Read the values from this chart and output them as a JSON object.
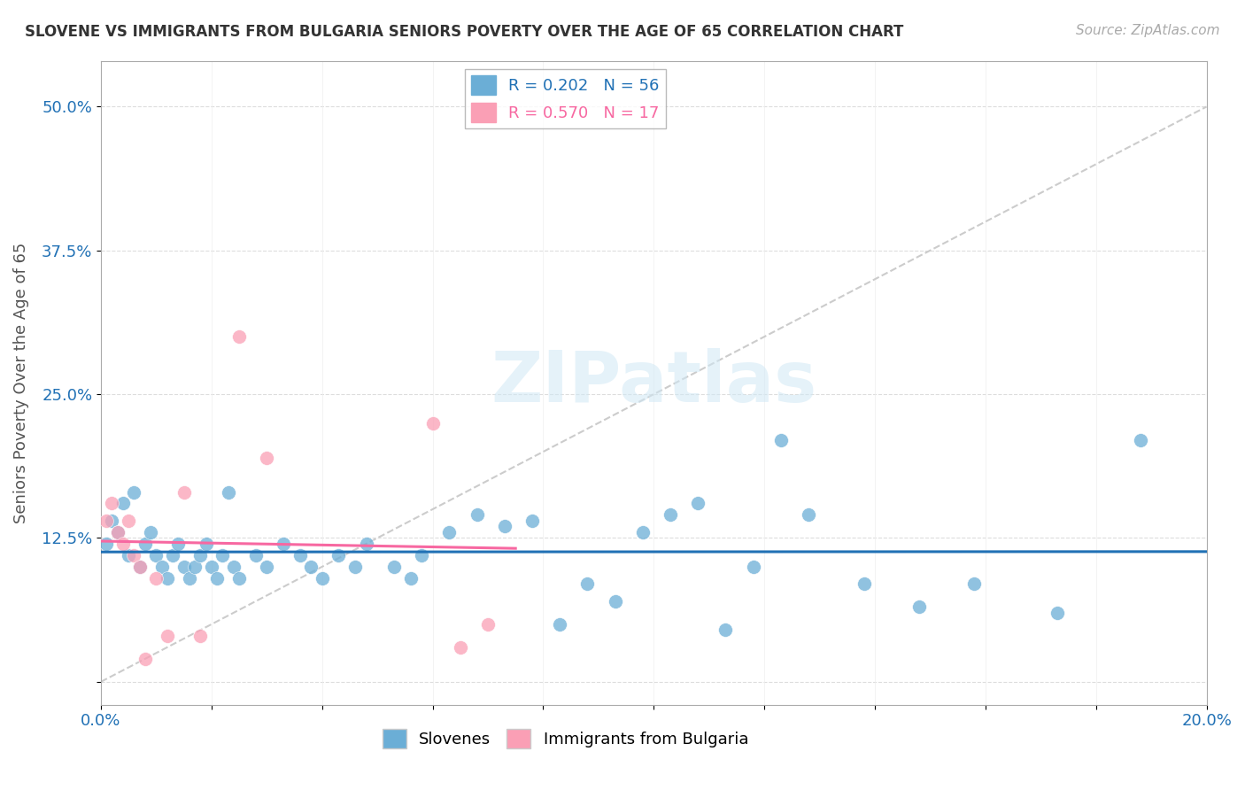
{
  "title": "SLOVENE VS IMMIGRANTS FROM BULGARIA SENIORS POVERTY OVER THE AGE OF 65 CORRELATION CHART",
  "source": "Source: ZipAtlas.com",
  "ylabel": "Seniors Poverty Over the Age of 65",
  "xlim": [
    0.0,
    0.2
  ],
  "ylim": [
    -0.02,
    0.54
  ],
  "xticks": [
    0.0,
    0.02,
    0.04,
    0.06,
    0.08,
    0.1,
    0.12,
    0.14,
    0.16,
    0.18,
    0.2
  ],
  "yticks": [
    0.0,
    0.125,
    0.25,
    0.375,
    0.5
  ],
  "ytick_labels": [
    "",
    "12.5%",
    "25.0%",
    "37.5%",
    "50.0%"
  ],
  "xtick_labels": [
    "0.0%",
    "",
    "",
    "",
    "",
    "",
    "",
    "",
    "",
    "",
    "20.0%"
  ],
  "slovene_R": 0.202,
  "slovene_N": 56,
  "bulgaria_R": 0.57,
  "bulgaria_N": 17,
  "slovene_color": "#6baed6",
  "bulgaria_color": "#fa9fb5",
  "slovene_line_color": "#2171b5",
  "bulgaria_line_color": "#f768a1",
  "diagonal_color": "#cccccc",
  "slovene_points": [
    [
      0.001,
      0.12
    ],
    [
      0.002,
      0.14
    ],
    [
      0.003,
      0.13
    ],
    [
      0.004,
      0.155
    ],
    [
      0.005,
      0.11
    ],
    [
      0.006,
      0.165
    ],
    [
      0.007,
      0.1
    ],
    [
      0.008,
      0.12
    ],
    [
      0.009,
      0.13
    ],
    [
      0.01,
      0.11
    ],
    [
      0.011,
      0.1
    ],
    [
      0.012,
      0.09
    ],
    [
      0.013,
      0.11
    ],
    [
      0.014,
      0.12
    ],
    [
      0.015,
      0.1
    ],
    [
      0.016,
      0.09
    ],
    [
      0.017,
      0.1
    ],
    [
      0.018,
      0.11
    ],
    [
      0.019,
      0.12
    ],
    [
      0.02,
      0.1
    ],
    [
      0.021,
      0.09
    ],
    [
      0.022,
      0.11
    ],
    [
      0.023,
      0.165
    ],
    [
      0.024,
      0.1
    ],
    [
      0.025,
      0.09
    ],
    [
      0.028,
      0.11
    ],
    [
      0.03,
      0.1
    ],
    [
      0.033,
      0.12
    ],
    [
      0.036,
      0.11
    ],
    [
      0.038,
      0.1
    ],
    [
      0.04,
      0.09
    ],
    [
      0.043,
      0.11
    ],
    [
      0.046,
      0.1
    ],
    [
      0.048,
      0.12
    ],
    [
      0.053,
      0.1
    ],
    [
      0.056,
      0.09
    ],
    [
      0.058,
      0.11
    ],
    [
      0.063,
      0.13
    ],
    [
      0.068,
      0.145
    ],
    [
      0.073,
      0.135
    ],
    [
      0.078,
      0.14
    ],
    [
      0.083,
      0.05
    ],
    [
      0.088,
      0.085
    ],
    [
      0.093,
      0.07
    ],
    [
      0.098,
      0.13
    ],
    [
      0.103,
      0.145
    ],
    [
      0.108,
      0.155
    ],
    [
      0.113,
      0.045
    ],
    [
      0.118,
      0.1
    ],
    [
      0.123,
      0.21
    ],
    [
      0.128,
      0.145
    ],
    [
      0.138,
      0.085
    ],
    [
      0.148,
      0.065
    ],
    [
      0.158,
      0.085
    ],
    [
      0.173,
      0.06
    ],
    [
      0.188,
      0.21
    ]
  ],
  "bulgaria_points": [
    [
      0.001,
      0.14
    ],
    [
      0.002,
      0.155
    ],
    [
      0.003,
      0.13
    ],
    [
      0.004,
      0.12
    ],
    [
      0.005,
      0.14
    ],
    [
      0.006,
      0.11
    ],
    [
      0.007,
      0.1
    ],
    [
      0.008,
      0.02
    ],
    [
      0.01,
      0.09
    ],
    [
      0.012,
      0.04
    ],
    [
      0.015,
      0.165
    ],
    [
      0.018,
      0.04
    ],
    [
      0.025,
      0.3
    ],
    [
      0.03,
      0.195
    ],
    [
      0.06,
      0.225
    ],
    [
      0.065,
      0.03
    ],
    [
      0.07,
      0.05
    ]
  ]
}
